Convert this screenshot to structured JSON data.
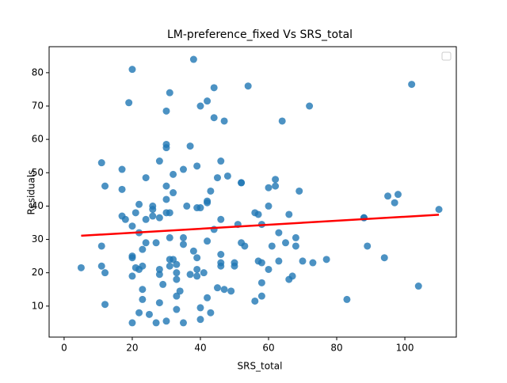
{
  "chart_data": {
    "type": "scatter",
    "title": "LM-preference_fixed Vs SRS_total",
    "x_label": "SRS_total",
    "y_label": "Residuals",
    "xlim": [
      -4.4,
      115.1
    ],
    "ylim": [
      0.7,
      87.8
    ],
    "xticks": [
      0,
      20,
      40,
      60,
      80,
      100
    ],
    "yticks": [
      10,
      20,
      30,
      40,
      50,
      60,
      70,
      80
    ],
    "x": [
      5,
      11,
      11,
      11,
      12,
      12,
      12,
      17,
      17,
      17,
      18,
      19,
      20,
      20,
      20,
      20,
      20,
      20,
      21,
      21,
      22,
      22,
      22,
      22,
      23,
      23,
      23,
      23,
      24,
      24,
      24,
      25,
      26,
      26,
      26,
      27,
      27,
      28,
      28,
      28,
      28,
      28,
      29,
      30,
      30,
      30,
      30,
      30,
      30,
      30,
      31,
      31,
      31,
      31,
      31,
      32,
      32,
      32,
      33,
      33,
      33,
      33,
      33,
      34,
      35,
      35,
      35,
      35,
      36,
      37,
      37,
      38,
      38,
      39,
      39,
      39,
      39,
      39,
      40,
      40,
      40,
      40,
      41,
      42,
      42,
      42,
      42,
      42,
      43,
      43,
      44,
      44,
      44,
      45,
      45,
      46,
      46,
      46,
      46,
      46,
      47,
      47,
      48,
      49,
      50,
      50,
      51,
      52,
      52,
      52,
      53,
      54,
      56,
      56,
      57,
      57,
      58,
      58,
      58,
      58,
      60,
      60,
      60,
      61,
      62,
      62,
      63,
      63,
      64,
      65,
      66,
      66,
      67,
      68,
      68,
      69,
      70,
      72,
      73,
      77,
      83,
      88,
      88,
      89,
      94,
      95,
      97,
      98,
      102,
      104,
      110
    ],
    "series": [
      {
        "color": "#1f77b4",
        "values": [
          21.5,
          53,
          28,
          22,
          46,
          20,
          10.5,
          51,
          45,
          37,
          36,
          71,
          81,
          34,
          25,
          24.5,
          19,
          5,
          38,
          21.5,
          40.5,
          32,
          21,
          8,
          27,
          22,
          15,
          12,
          48.5,
          36,
          29,
          7.5,
          40,
          39,
          37,
          29,
          5,
          53.5,
          36.5,
          21,
          19.5,
          11,
          16.5,
          58.5,
          57.5,
          46,
          42,
          38,
          68.5,
          5.5,
          74,
          38,
          30.5,
          24,
          22,
          49.5,
          44,
          24,
          22.5,
          20,
          18,
          13,
          9,
          14.5,
          51,
          30.5,
          28.5,
          5,
          40,
          58,
          19.5,
          84,
          26.5,
          52,
          39.5,
          24.5,
          21,
          19,
          70,
          39.5,
          9.5,
          6,
          20,
          71.5,
          41.5,
          41,
          29.5,
          12.5,
          44.5,
          8,
          75.5,
          66.5,
          33,
          48.5,
          15.5,
          53.5,
          36,
          25.5,
          23,
          22,
          65.5,
          15,
          49,
          14.5,
          23,
          22,
          34.5,
          47,
          47,
          29,
          28,
          76,
          38,
          11.5,
          37.5,
          23.5,
          34.5,
          23,
          17,
          13,
          45.5,
          40,
          21,
          28,
          48,
          46,
          32,
          23.5,
          65.5,
          29,
          37.5,
          18,
          19,
          30.5,
          28,
          44.5,
          23.5,
          70,
          23,
          24,
          12,
          36.5,
          36.5,
          28,
          24.5,
          43,
          41,
          43.5,
          76.5,
          16,
          39
        ]
      }
    ],
    "fit_line": {
      "x": [
        5,
        110
      ],
      "values": [
        31.1,
        37.4
      ],
      "color": "#ff0000"
    }
  }
}
